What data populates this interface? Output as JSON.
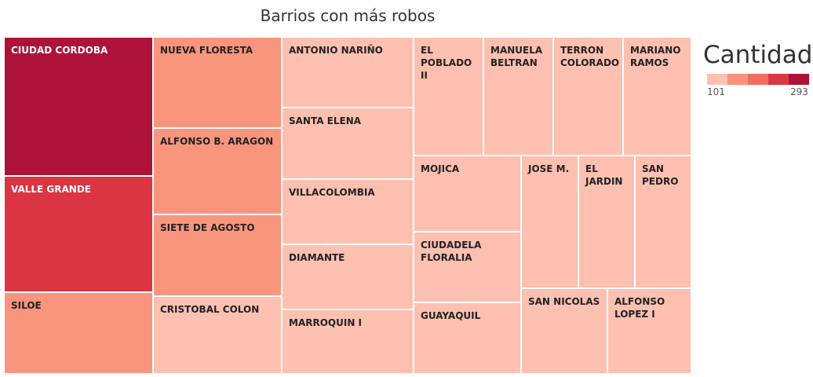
{
  "chart_data": {
    "type": "treemap",
    "title": "Barrios con más robos",
    "legend": {
      "title": "Cantidad",
      "min": "101",
      "max": "293",
      "colors": [
        "#fdc0b1",
        "#fb9478",
        "#f36c5c",
        "#db3645",
        "#ad1339"
      ]
    },
    "tiles": [
      {
        "label": "CIUDAD CORDOBA",
        "color": "#ad1339",
        "text": "#ffffff"
      },
      {
        "label": "VALLE GRANDE",
        "color": "#db3442",
        "text": "#ffffff"
      },
      {
        "label": "SILOE",
        "color": "#fa957d",
        "text": "#222222"
      },
      {
        "label": "NUEVA FLORESTA",
        "color": "#fa957d",
        "text": "#222222"
      },
      {
        "label": "ALFONSO B. ARAGON",
        "color": "#fa957d",
        "text": "#222222"
      },
      {
        "label": "SIETE DE AGOSTO",
        "color": "#fa957d",
        "text": "#222222"
      },
      {
        "label": "CRISTOBAL COLON",
        "color": "#fdc0b1",
        "text": "#222222"
      },
      {
        "label": "ANTONIO NARIÑO",
        "color": "#fdc0b1",
        "text": "#222222"
      },
      {
        "label": "SANTA ELENA",
        "color": "#fdc0b1",
        "text": "#222222"
      },
      {
        "label": "VILLACOLOMBIA",
        "color": "#fdc0b1",
        "text": "#222222"
      },
      {
        "label": "DIAMANTE",
        "color": "#fdc0b1",
        "text": "#222222"
      },
      {
        "label": "MARROQUIN I",
        "color": "#fdc0b1",
        "text": "#222222"
      },
      {
        "label": "EL POBLADO\nII",
        "color": "#fdc0b1",
        "text": "#222222"
      },
      {
        "label": "MANUELA\nBELTRAN",
        "color": "#fdc0b1",
        "text": "#222222"
      },
      {
        "label": "TERRON\nCOLORADO",
        "color": "#fdc0b1",
        "text": "#222222"
      },
      {
        "label": "MARIANO\nRAMOS",
        "color": "#fdc0b1",
        "text": "#222222"
      },
      {
        "label": "MOJICA",
        "color": "#fdc0b1",
        "text": "#222222"
      },
      {
        "label": "CIUDADELA\nFLORALIA",
        "color": "#fdc0b1",
        "text": "#222222"
      },
      {
        "label": "GUAYAQUIL",
        "color": "#fdc0b1",
        "text": "#222222"
      },
      {
        "label": "JOSE M.",
        "color": "#fdc0b1",
        "text": "#222222"
      },
      {
        "label": "EL\nJARDIN",
        "color": "#fdc0b1",
        "text": "#222222"
      },
      {
        "label": "SAN\nPEDRO",
        "color": "#fdc0b1",
        "text": "#222222"
      },
      {
        "label": "SAN NICOLAS",
        "color": "#fdc0b1",
        "text": "#222222"
      },
      {
        "label": "ALFONSO\nLOPEZ I",
        "color": "#fdc0b1",
        "text": "#222222"
      }
    ]
  }
}
